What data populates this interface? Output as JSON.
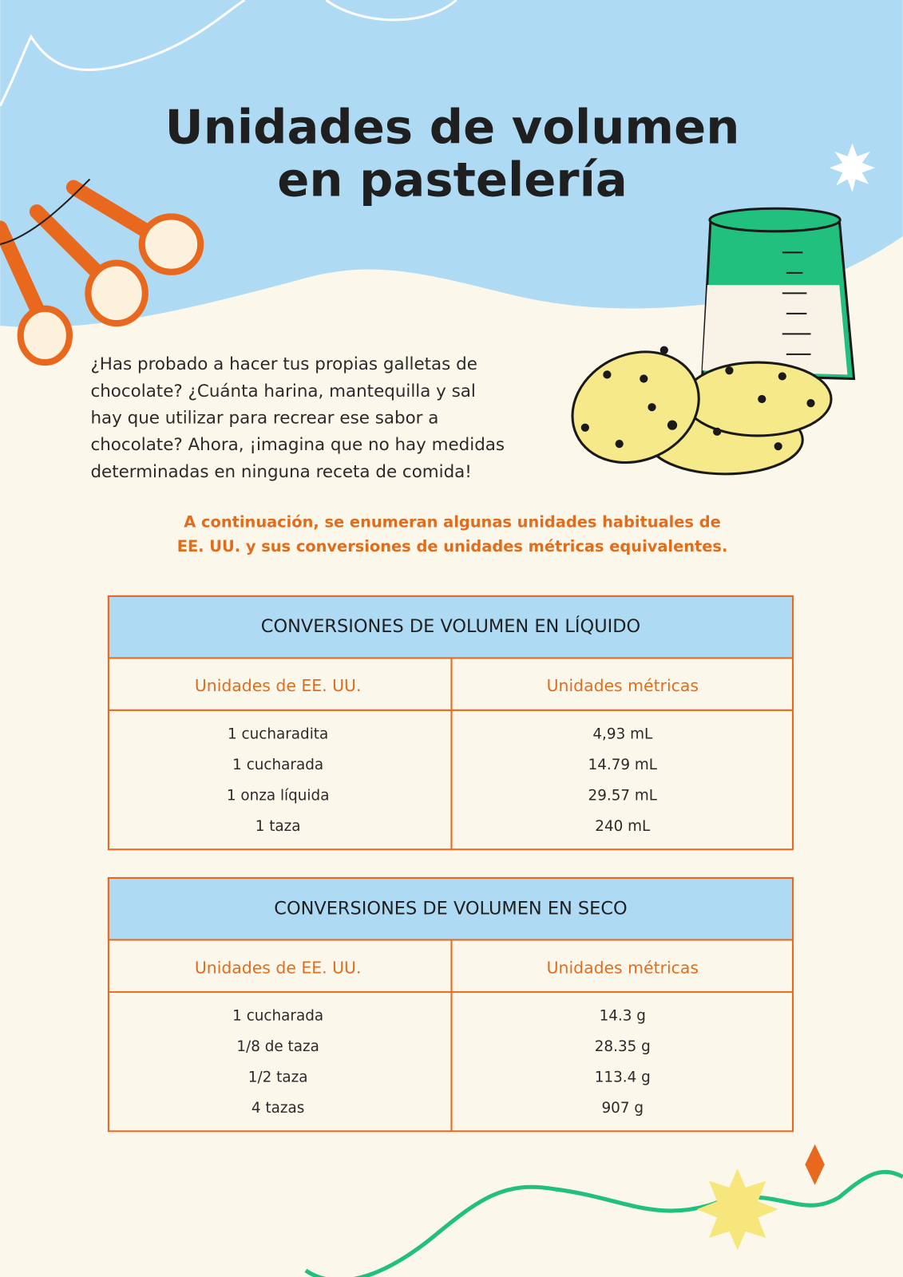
{
  "header": {
    "title": [
      "Unidades de volumen",
      "en pastelería"
    ]
  },
  "intro": [
    "¿Has probado a hacer tus propias galletas de",
    "chocolate? ¿Cuánta harina, mantequilla y sal",
    "hay que utilizar para recrear ese sabor a",
    "chocolate? Ahora, ¡imagina que no hay medidas",
    "determinadas en ninguna receta de comida!"
  ],
  "highlight": [
    "A continuación, se enumeran algunas unidades habituales de",
    "EE. UU. y sus conversiones de unidades métricas equivalentes."
  ],
  "tables": [
    {
      "title": "CONVERSIONES DE VOLUMEN EN LÍQUIDO",
      "columns": [
        "Unidades de EE. UU.",
        "Unidades métricas"
      ],
      "rows": [
        [
          "1 cucharadita",
          "4,93 mL"
        ],
        [
          "1 cucharada",
          "14.79 mL"
        ],
        [
          "1 onza líquida",
          "29.57 mL"
        ],
        [
          "1 taza",
          "240 mL"
        ]
      ]
    },
    {
      "title": "CONVERSIONES DE VOLUMEN EN SECO",
      "columns": [
        "Unidades de EE. UU.",
        "Unidades métricas"
      ],
      "rows": [
        [
          "1 cucharada",
          "14.3 g"
        ],
        [
          "1/8 de taza",
          "28.35 g"
        ],
        [
          "1/2 taza",
          "113.4 g"
        ],
        [
          "4 tazas",
          "907 g"
        ]
      ]
    }
  ]
}
